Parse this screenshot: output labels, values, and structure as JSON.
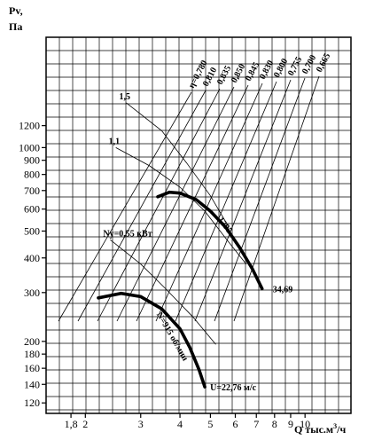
{
  "chart_data": {
    "type": "line",
    "title": "",
    "xlabel": "Q тыс.м³/ч",
    "xlabel_parts": {
      "main": "Q тыс.м",
      "sup": "3",
      "tail": "/ч"
    },
    "ylabel": [
      "Pv,",
      "Па"
    ],
    "x_scale": "log",
    "y_scale": "log",
    "xlim": [
      1.5,
      14
    ],
    "ylim": [
      110,
      2500
    ],
    "x_ticks": [
      1.8,
      2,
      3,
      4,
      5,
      6,
      7,
      8,
      9,
      10
    ],
    "x_tick_labels": [
      "1,8",
      "2",
      "3",
      "4",
      "5",
      "6",
      "7",
      "8",
      "9",
      "10"
    ],
    "y_ticks": [
      120,
      140,
      160,
      180,
      200,
      300,
      400,
      500,
      600,
      700,
      800,
      900,
      1000,
      1200
    ],
    "y_tick_labels": [
      "120",
      "140",
      "160",
      "180",
      "200",
      "300",
      "400",
      "500",
      "600",
      "700",
      "800",
      "900",
      "1000",
      "1200"
    ],
    "grid": true,
    "series": [
      {
        "name": "1395",
        "x": [
          3.4,
          3.7,
          4.0,
          4.5,
          5.0,
          5.6,
          6.2,
          6.8,
          7.3
        ],
        "y": [
          665,
          690,
          685,
          650,
          590,
          515,
          435,
          365,
          310
        ]
      },
      {
        "name": "N=915 об/мин",
        "x": [
          2.2,
          2.6,
          3.0,
          3.5,
          4.0,
          4.3,
          4.6,
          4.8
        ],
        "y": [
          287,
          298,
          290,
          262,
          222,
          190,
          158,
          137
        ]
      }
    ],
    "power_curves": [
      {
        "label": "1,5",
        "x": [
          2.7,
          3.5,
          4.2,
          5.0,
          5.7
        ],
        "y": [
          1450,
          1150,
          880,
          670,
          520
        ]
      },
      {
        "label": "1,1",
        "x": [
          2.5,
          3.2,
          4.0,
          4.8,
          5.6,
          6.5
        ],
        "y": [
          1000,
          860,
          720,
          590,
          470,
          380
        ]
      },
      {
        "label": "Nу=0,55 кВт",
        "x": [
          2.4,
          3.0,
          3.6,
          4.4,
          5.2
        ],
        "y": [
          465,
          380,
          310,
          245,
          195
        ]
      }
    ],
    "efficiency_labels": [
      "η=0,780",
      "0,810",
      "0,835",
      "0,850",
      "0,845",
      "0,830",
      "0,800",
      "0,755",
      "0,700",
      "0,665"
    ],
    "annotations": [
      "34,69",
      "U=22,76 м/с"
    ]
  }
}
